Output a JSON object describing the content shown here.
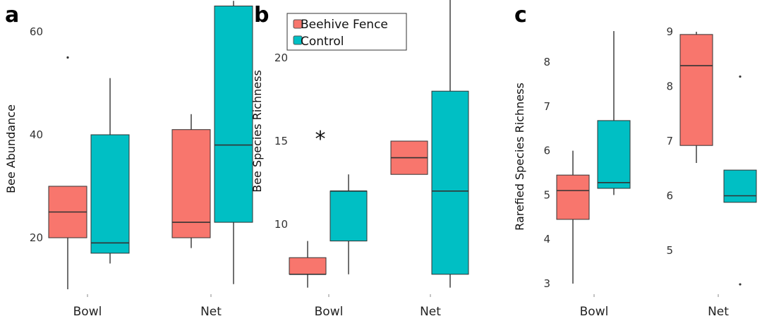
{
  "colors": {
    "beehive": "#f8766d",
    "control": "#00bfc4",
    "line": "#333333"
  },
  "legend": {
    "items": [
      {
        "label": "Beehive Fence",
        "color": "#f8766d"
      },
      {
        "label": "Control",
        "color": "#00bfc4"
      }
    ]
  },
  "chart_data": [
    {
      "panel": "a",
      "type": "box",
      "ylabel": "Bee Abundance",
      "yticks": [
        20,
        40,
        60
      ],
      "ylim": [
        10,
        66
      ],
      "categories": [
        "Bowl",
        "Net"
      ],
      "boxes": [
        {
          "category": "Bowl",
          "series": "Beehive Fence",
          "min": 10,
          "q1": 20,
          "median": 25,
          "q3": 30,
          "max": 30,
          "outliers": [
            55
          ]
        },
        {
          "category": "Bowl",
          "series": "Control",
          "min": 15,
          "q1": 17,
          "median": 19,
          "q3": 40,
          "max": 51,
          "outliers": []
        },
        {
          "category": "Net",
          "series": "Beehive Fence",
          "min": 18,
          "q1": 20,
          "median": 23,
          "q3": 41,
          "max": 44,
          "outliers": []
        },
        {
          "category": "Net",
          "series": "Control",
          "min": 11,
          "q1": 23,
          "median": 38,
          "q3": 65,
          "max": 66,
          "outliers": []
        }
      ]
    },
    {
      "panel": "b",
      "type": "box",
      "ylabel": "Bee Species Richness",
      "yticks": [
        10,
        15,
        20
      ],
      "ylim": [
        6,
        23.5
      ],
      "categories": [
        "Bowl",
        "Net"
      ],
      "annotation": "*",
      "boxes": [
        {
          "category": "Bowl",
          "series": "Beehive Fence",
          "min": 6.2,
          "q1": 7,
          "median": 7,
          "q3": 8,
          "max": 9,
          "outliers": []
        },
        {
          "category": "Bowl",
          "series": "Control",
          "min": 7,
          "q1": 9,
          "median": 12,
          "q3": 12,
          "max": 13,
          "outliers": []
        },
        {
          "category": "Net",
          "series": "Beehive Fence",
          "min": 13,
          "q1": 13,
          "median": 14,
          "q3": 15,
          "max": 15,
          "outliers": []
        },
        {
          "category": "Net",
          "series": "Control",
          "min": 6.2,
          "q1": 7,
          "median": 12,
          "q3": 18,
          "max": 23.5,
          "outliers": []
        }
      ]
    },
    {
      "panel": "c",
      "type": "box",
      "ylabel": "Rarefied Species Richness",
      "facets": [
        {
          "category": "Bowl",
          "yticks": [
            3,
            4,
            5,
            6,
            7,
            8
          ],
          "ylim": [
            2.8,
            8.9
          ],
          "boxes": [
            {
              "series": "Beehive Fence",
              "min": 3,
              "q1": 4.45,
              "median": 5.1,
              "q3": 5.45,
              "max": 6,
              "outliers": []
            },
            {
              "series": "Control",
              "min": 5,
              "q1": 5.15,
              "median": 5.28,
              "q3": 6.68,
              "max": 8.7,
              "outliers": []
            }
          ]
        },
        {
          "category": "Net",
          "yticks": [
            5,
            6,
            7,
            8,
            9
          ],
          "ylim": [
            4.3,
            9.05
          ],
          "boxes": [
            {
              "series": "Beehive Fence",
              "min": 6.6,
              "q1": 6.92,
              "median": 8.38,
              "q3": 8.95,
              "max": 9,
              "outliers": []
            },
            {
              "series": "Control",
              "min": 5.88,
              "q1": 5.88,
              "median": 6,
              "q3": 6.47,
              "max": 6.47,
              "outliers": [
                8.18,
                4.38
              ]
            }
          ]
        }
      ]
    }
  ]
}
